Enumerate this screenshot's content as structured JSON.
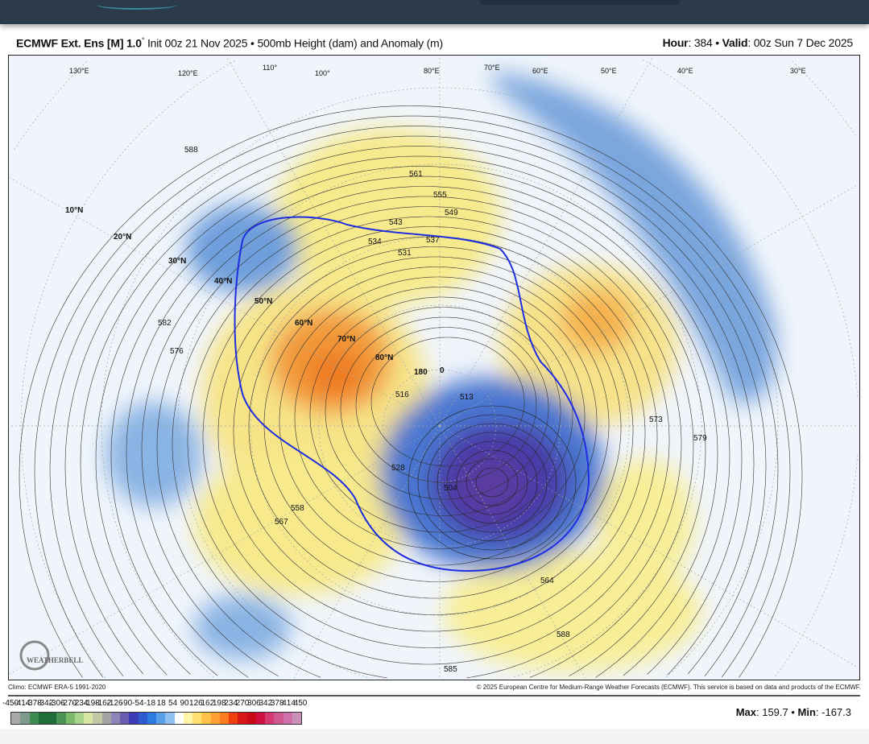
{
  "header": {
    "model": "ECMWF Ext. Ens [M] 1.0",
    "degree": "°",
    "init": " Init 00z 21 Nov 2025 • 500mb Height (dam) and Anomaly (m)",
    "hour_label": "Hour",
    "hour_value": ": 384 • ",
    "valid_label": "Valid",
    "valid_value": ": 00z Sun 7 Dec 2025"
  },
  "map": {
    "latitude_labels": [
      "10°N",
      "20°N",
      "30°N",
      "40°N",
      "50°N",
      "60°N",
      "70°N",
      "80°N"
    ],
    "longitude_labels": [
      "130°E",
      "120°E",
      "110°",
      "100°",
      "80°E",
      "70°E",
      "60°E",
      "50°E",
      "40°E",
      "30°E"
    ],
    "pole_labels": [
      "180",
      "0"
    ],
    "contour_labels": [
      "588",
      "582",
      "576",
      "561",
      "555",
      "549",
      "543",
      "537",
      "534",
      "531",
      "558",
      "567",
      "573",
      "579",
      "516",
      "513",
      "504",
      "528",
      "564",
      "588",
      "585"
    ],
    "logo_text": "WEATHERBELL",
    "colors": {
      "positive": "#f7e98a",
      "positive_strong": "#f08a2a",
      "negative": "#6f9fdc",
      "negative_strong": "#4a3aa8",
      "climo_line": "#1e2ee0"
    }
  },
  "footer": {
    "climo": "Climo: ECMWF ERA-5 1991-2020",
    "copyright": "© 2025 European Centre for Medium-Range Weather Forecasts (ECMWF). This service is based on data and products of the ECMWF."
  },
  "legend": {
    "ticks": [
      "-450",
      "-414",
      "-378",
      "-342",
      "-306",
      "-270",
      "-234",
      "-198",
      "-162",
      "-126",
      "-90",
      "-54",
      "-18",
      "18",
      "54",
      "90",
      "126",
      "162",
      "198",
      "234",
      "270",
      "306",
      "342",
      "378",
      "414",
      "450"
    ],
    "colors": [
      "#a8a8a8",
      "#7f9a8a",
      "#3e8a52",
      "#1f6e3a",
      "#1f6e3a",
      "#4b9356",
      "#7cba6a",
      "#a8d58a",
      "#d8e6a4",
      "#c2c8a4",
      "#a4a4a4",
      "#8e84b8",
      "#6a5ab0",
      "#3c3cb4",
      "#2e5ad0",
      "#2f7ce0",
      "#5aa0e8",
      "#8ec0f0",
      "#ffffff",
      "#fff4a8",
      "#ffe070",
      "#ffc24a",
      "#ffa030",
      "#ff7a20",
      "#f04010",
      "#d81818",
      "#c80a1a",
      "#d01040",
      "#d83870",
      "#d05890",
      "#d070a8",
      "#c890b8"
    ],
    "max_label": "Max",
    "max_value": ": 159.7 • ",
    "min_label": "Min",
    "min_value": ": -167.3"
  }
}
